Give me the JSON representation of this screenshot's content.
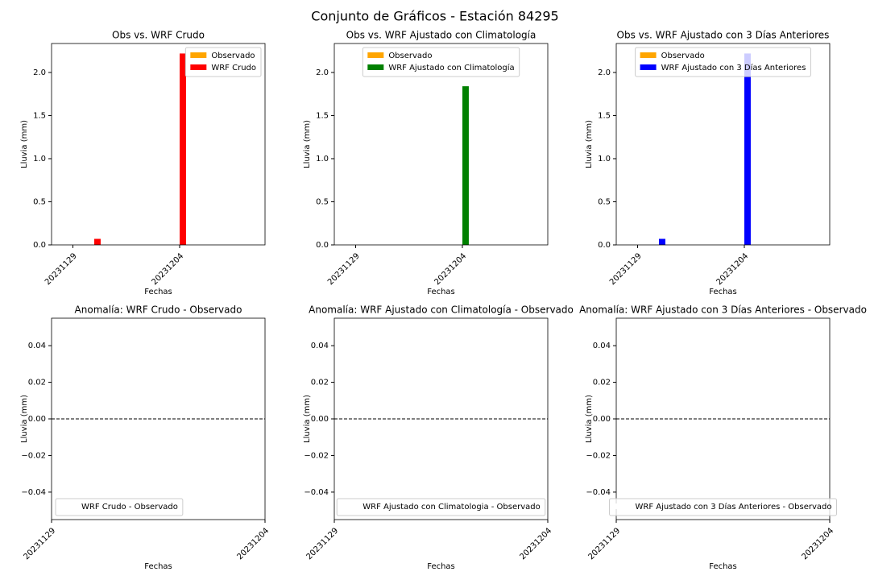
{
  "title": "Conjunto de Gráficos - Estación 84295",
  "chart_data": [
    {
      "type": "bar",
      "title": "Obs vs. WRF Crudo",
      "xlabel": "Fechas",
      "ylabel": "Lluvia (mm)",
      "x": [
        "20231130",
        "20231204"
      ],
      "series": [
        {
          "name": "Observado",
          "color": "#ffa500",
          "values": [
            0,
            0
          ]
        },
        {
          "name": "WRF Crudo",
          "color": "#ff0000",
          "values": [
            0.07,
            2.22
          ]
        }
      ],
      "xlim": [
        "20231128",
        "20231208"
      ],
      "xticks": [
        "20231129",
        "20231204"
      ],
      "ylim": [
        0,
        2.336
      ],
      "yticks": [
        {
          "value": 0,
          "label": "0.0"
        },
        {
          "value": 0.5,
          "label": "0.5"
        },
        {
          "value": 1,
          "label": "1.0"
        },
        {
          "value": 1.5,
          "label": "1.5"
        },
        {
          "value": 2,
          "label": "2.0"
        }
      ],
      "legend": "upper right"
    },
    {
      "type": "bar",
      "title": "Obs vs. WRF Ajustado con Climatología",
      "xlabel": "Fechas",
      "ylabel": "Lluvia (mm)",
      "x": [
        "20231130",
        "20231204"
      ],
      "series": [
        {
          "name": "Observado",
          "color": "#ffa500",
          "values": [
            0,
            0
          ]
        },
        {
          "name": "WRF Ajustado con Climatología",
          "color": "#008000",
          "values": [
            0,
            1.84
          ]
        }
      ],
      "xlim": [
        "20231128",
        "20231208"
      ],
      "xticks": [
        "20231129",
        "20231204"
      ],
      "ylim": [
        0,
        2.336
      ],
      "yticks": [
        {
          "value": 0,
          "label": "0.0"
        },
        {
          "value": 0.5,
          "label": "0.5"
        },
        {
          "value": 1,
          "label": "1.0"
        },
        {
          "value": 1.5,
          "label": "1.5"
        },
        {
          "value": 2,
          "label": "2.0"
        }
      ],
      "legend": "upper center"
    },
    {
      "type": "bar",
      "title": "Obs vs. WRF Ajustado con 3 Días Anteriores",
      "xlabel": "Fechas",
      "ylabel": "Lluvia (mm)",
      "x": [
        "20231130",
        "20231204"
      ],
      "series": [
        {
          "name": "Observado",
          "color": "#ffa500",
          "values": [
            0,
            0
          ]
        },
        {
          "name": "WRF Ajustado con 3 Días Anteriores",
          "color": "#0000ff",
          "values": [
            0.07,
            2.22
          ]
        }
      ],
      "xlim": [
        "20231128",
        "20231208"
      ],
      "xticks": [
        "20231129",
        "20231204"
      ],
      "ylim": [
        0,
        2.336
      ],
      "yticks": [
        {
          "value": 0,
          "label": "0.0"
        },
        {
          "value": 0.5,
          "label": "0.5"
        },
        {
          "value": 1,
          "label": "1.0"
        },
        {
          "value": 1.5,
          "label": "1.5"
        },
        {
          "value": 2,
          "label": "2.0"
        }
      ],
      "legend": "upper center"
    },
    {
      "type": "bar",
      "title": "Anomalía: WRF Crudo - Observado",
      "xlabel": "Fechas",
      "ylabel": "Lluvia (mm)",
      "x": [],
      "series": [
        {
          "name": "WRF Crudo - Observado",
          "color": "#ffffff",
          "values": []
        }
      ],
      "xlim": [
        "20231129",
        "20231204"
      ],
      "xticks": [
        "20231129",
        "20231204"
      ],
      "ylim": [
        -0.055,
        0.055
      ],
      "yticks": [
        {
          "value": -0.04,
          "label": "−0.04"
        },
        {
          "value": -0.02,
          "label": "−0.02"
        },
        {
          "value": 0,
          "label": "0.00"
        },
        {
          "value": 0.02,
          "label": "0.02"
        },
        {
          "value": 0.04,
          "label": "0.04"
        }
      ],
      "hline": 0,
      "legend": "lower left"
    },
    {
      "type": "bar",
      "title": "Anomalía: WRF Ajustado con Climatología - Observado",
      "xlabel": "Fechas",
      "ylabel": "Lluvia (mm)",
      "x": [],
      "series": [
        {
          "name": "WRF Ajustado con Climatologia - Observado",
          "color": "#ffffff",
          "values": []
        }
      ],
      "xlim": [
        "20231129",
        "20231204"
      ],
      "xticks": [
        "20231129",
        "20231204"
      ],
      "ylim": [
        -0.055,
        0.055
      ],
      "yticks": [
        {
          "value": -0.04,
          "label": "−0.04"
        },
        {
          "value": -0.02,
          "label": "−0.02"
        },
        {
          "value": 0,
          "label": "0.00"
        },
        {
          "value": 0.02,
          "label": "0.02"
        },
        {
          "value": 0.04,
          "label": "0.04"
        }
      ],
      "hline": 0,
      "legend": "lower center"
    },
    {
      "type": "bar",
      "title": "Anomalía: WRF Ajustado con 3 Días Anteriores - Observado",
      "xlabel": "Fechas",
      "ylabel": "Lluvia (mm)",
      "x": [],
      "series": [
        {
          "name": "WRF Ajustado con 3 Días Anteriores - Observado",
          "color": "#ffffff",
          "values": []
        }
      ],
      "xlim": [
        "20231129",
        "20231204"
      ],
      "xticks": [
        "20231129",
        "20231204"
      ],
      "ylim": [
        -0.055,
        0.055
      ],
      "yticks": [
        {
          "value": -0.04,
          "label": "−0.04"
        },
        {
          "value": -0.02,
          "label": "−0.02"
        },
        {
          "value": 0,
          "label": "0.00"
        },
        {
          "value": 0.02,
          "label": "0.02"
        },
        {
          "value": 0.04,
          "label": "0.04"
        }
      ],
      "hline": 0,
      "legend": "lower center"
    }
  ]
}
